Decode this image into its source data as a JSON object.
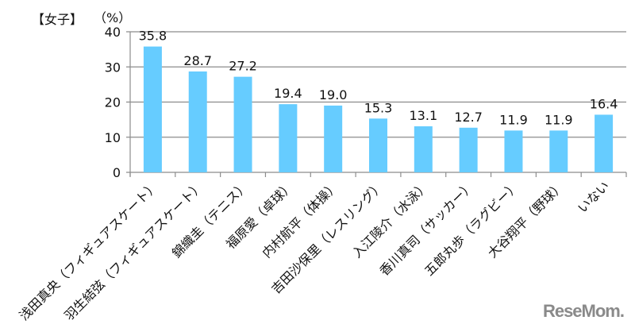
{
  "chart_data": {
    "type": "bar",
    "title": "【女子】",
    "ylabel": "（%）",
    "xlabel": "",
    "ylim": [
      0,
      40
    ],
    "yticks": [
      0,
      10,
      20,
      30,
      40
    ],
    "grid": true,
    "bar_color": "#66ccff",
    "categories": [
      "浅田真央（フィギュアスケート）",
      "羽生結弦（フィギュアスケート）",
      "錦織圭（テニス）",
      "福原愛（卓球）",
      "内村航平（体操）",
      "吉田沙保里（レスリング）",
      "入江陵介（水泳）",
      "香川真司（サッカー）",
      "五郎丸歩（ラグビー）",
      "大谷翔平（野球）",
      "いない"
    ],
    "values": [
      35.8,
      28.7,
      27.2,
      19.4,
      19.0,
      15.3,
      13.1,
      12.7,
      11.9,
      11.9,
      16.4
    ],
    "value_labels": [
      "35.8",
      "28.7",
      "27.2",
      "19.4",
      "19.0",
      "15.3",
      "13.1",
      "12.7",
      "11.9",
      "11.9",
      "16.4"
    ]
  },
  "watermark": "ReseMom"
}
